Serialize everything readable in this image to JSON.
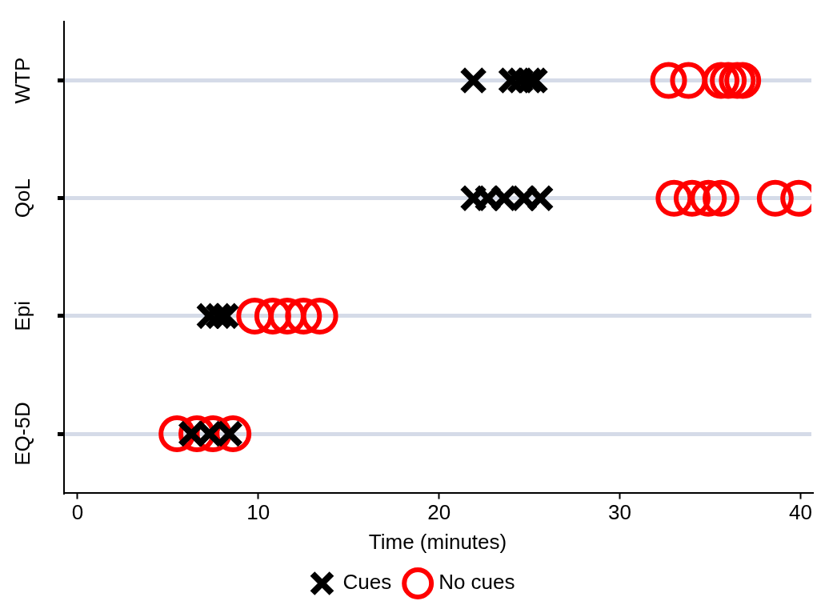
{
  "chart_data": {
    "type": "scatter",
    "orientation": "horizontal",
    "xlabel": "Time (minutes)",
    "categories": [
      "WTP",
      "QoL",
      "Epi",
      "EQ-5D"
    ],
    "xlim": [
      -0.75,
      40.6
    ],
    "xticks": [
      0,
      10,
      20,
      30,
      40
    ],
    "grid": "y",
    "legend": "bottom",
    "series": [
      {
        "name": "Cues",
        "color": "#000000",
        "marker": "cross",
        "x": [
          "WTP",
          "WTP",
          "WTP",
          "WTP",
          "WTP",
          "QoL",
          "QoL",
          "QoL",
          "QoL",
          "QoL",
          "Epi",
          "Epi",
          "Epi",
          "EQ-5D",
          "EQ-5D",
          "EQ-5D"
        ],
        "values": [
          21.9,
          24.0,
          24.5,
          25.0,
          25.3,
          21.9,
          22.7,
          23.6,
          24.7,
          25.6,
          7.3,
          7.8,
          8.2,
          6.3,
          7.3,
          8.4
        ]
      },
      {
        "name": "No cues",
        "color": "#ff0000",
        "marker": "circle",
        "x": [
          "WTP",
          "WTP",
          "WTP",
          "WTP",
          "WTP",
          "WTP",
          "QoL",
          "QoL",
          "QoL",
          "QoL",
          "QoL",
          "QoL",
          "Epi",
          "Epi",
          "Epi",
          "Epi",
          "Epi",
          "EQ-5D",
          "EQ-5D",
          "EQ-5D",
          "EQ-5D"
        ],
        "values": [
          32.7,
          33.8,
          35.6,
          36.0,
          36.5,
          36.8,
          33.0,
          34.0,
          34.9,
          35.6,
          38.6,
          39.9,
          9.8,
          10.8,
          11.6,
          12.5,
          13.4,
          5.5,
          6.6,
          7.5,
          8.6
        ]
      }
    ]
  }
}
